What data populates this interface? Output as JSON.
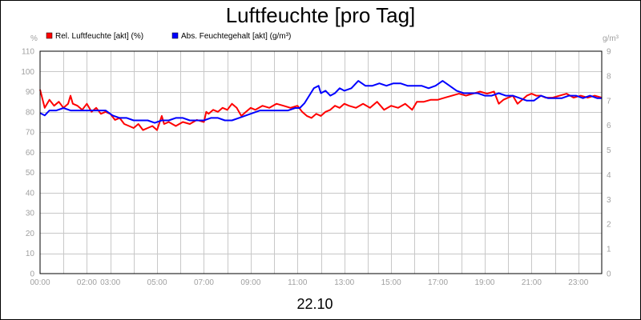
{
  "chart_data": {
    "type": "line",
    "title": "Luftfeuchte [pro Tag]",
    "date_label": "22.10",
    "x_unit": "hours",
    "xlim": [
      0,
      24
    ],
    "x_ticks": [
      {
        "x": 0,
        "label": "00:00"
      },
      {
        "x": 2,
        "label": "02:00"
      },
      {
        "x": 3,
        "label": "03:00"
      },
      {
        "x": 5,
        "label": "05:00"
      },
      {
        "x": 7,
        "label": "07:00"
      },
      {
        "x": 9,
        "label": "09:00"
      },
      {
        "x": 11,
        "label": "11:00"
      },
      {
        "x": 13,
        "label": "13:00"
      },
      {
        "x": 15,
        "label": "15:00"
      },
      {
        "x": 17,
        "label": "17:00"
      },
      {
        "x": 19,
        "label": "19:00"
      },
      {
        "x": 21,
        "label": "21:00"
      },
      {
        "x": 23,
        "label": "23:00"
      }
    ],
    "y_left": {
      "unit": "%",
      "lim": [
        0,
        110
      ],
      "ticks": [
        "0",
        "10",
        "20",
        "30",
        "40",
        "50",
        "60",
        "70",
        "80",
        "90",
        "100",
        "110"
      ]
    },
    "y_right": {
      "unit": "g/m³",
      "lim": [
        0,
        9
      ],
      "ticks": [
        "0",
        "1",
        "2",
        "3",
        "4",
        "5",
        "6",
        "7",
        "8",
        "9"
      ]
    },
    "grid": true,
    "legend_position": "top-left",
    "series": [
      {
        "name": "Rel. Luftfeuchte [akt] (%)",
        "axis": "left",
        "color": "#ff0000",
        "x": [
          0,
          0.2,
          0.4,
          0.6,
          0.8,
          1.0,
          1.2,
          1.3,
          1.4,
          1.6,
          1.8,
          2.0,
          2.2,
          2.4,
          2.6,
          2.8,
          3.0,
          3.2,
          3.4,
          3.6,
          3.8,
          4.0,
          4.2,
          4.4,
          4.6,
          4.8,
          5.0,
          5.2,
          5.3,
          5.5,
          5.8,
          6.1,
          6.4,
          6.7,
          7.0,
          7.1,
          7.2,
          7.4,
          7.6,
          7.8,
          8.0,
          8.2,
          8.4,
          8.6,
          8.8,
          9.0,
          9.2,
          9.5,
          9.8,
          10.1,
          10.4,
          10.7,
          11.0,
          11.2,
          11.4,
          11.6,
          11.8,
          12.0,
          12.2,
          12.4,
          12.6,
          12.8,
          13.0,
          13.2,
          13.5,
          13.8,
          14.1,
          14.4,
          14.7,
          15.0,
          15.3,
          15.6,
          15.9,
          16.1,
          16.4,
          16.7,
          17.0,
          17.3,
          17.6,
          17.9,
          18.2,
          18.5,
          18.8,
          19.1,
          19.4,
          19.6,
          19.8,
          20.0,
          20.2,
          20.4,
          20.6,
          20.8,
          21.0,
          21.2,
          21.4,
          21.6,
          21.9,
          22.2,
          22.5,
          22.8,
          23.1,
          23.4,
          23.7,
          24.0
        ],
        "values": [
          91,
          82,
          86,
          83,
          85,
          82,
          84,
          88,
          84,
          83,
          81,
          84,
          80,
          82,
          79,
          80,
          79,
          76,
          77,
          74,
          73,
          72,
          74,
          71,
          72,
          73,
          71,
          78,
          74,
          75,
          73,
          75,
          74,
          76,
          75,
          80,
          79,
          81,
          80,
          82,
          81,
          84,
          82,
          78,
          80,
          82,
          81,
          83,
          82,
          84,
          83,
          82,
          83,
          80,
          78,
          77,
          79,
          78,
          80,
          81,
          83,
          82,
          84,
          83,
          82,
          84,
          82,
          85,
          81,
          83,
          82,
          84,
          81,
          85,
          85,
          86,
          86,
          87,
          88,
          89,
          88,
          89,
          90,
          89,
          90,
          84,
          86,
          87,
          88,
          84,
          86,
          88,
          89,
          88,
          88,
          87,
          87,
          88,
          89,
          87,
          88,
          87,
          88,
          87
        ]
      },
      {
        "name": "Abs. Feuchtegehalt [akt] (g/m³)",
        "axis": "right",
        "color": "#0000ff",
        "x": [
          0,
          0.2,
          0.4,
          0.7,
          1.0,
          1.3,
          1.6,
          1.9,
          2.2,
          2.5,
          2.8,
          3.1,
          3.4,
          3.7,
          4.0,
          4.3,
          4.6,
          4.9,
          5.2,
          5.5,
          5.8,
          6.1,
          6.4,
          6.7,
          7.0,
          7.3,
          7.6,
          7.9,
          8.2,
          8.5,
          8.8,
          9.1,
          9.4,
          9.7,
          10.0,
          10.3,
          10.6,
          10.9,
          11.1,
          11.3,
          11.5,
          11.7,
          11.9,
          12.0,
          12.2,
          12.4,
          12.6,
          12.8,
          13.0,
          13.3,
          13.6,
          13.9,
          14.2,
          14.5,
          14.8,
          15.1,
          15.4,
          15.7,
          16.0,
          16.3,
          16.6,
          16.9,
          17.2,
          17.5,
          17.8,
          18.1,
          18.4,
          18.7,
          19.0,
          19.3,
          19.6,
          19.9,
          20.2,
          20.5,
          20.8,
          21.1,
          21.4,
          21.7,
          22.0,
          22.3,
          22.6,
          22.9,
          23.2,
          23.5,
          23.8,
          24.0
        ],
        "values": [
          6.5,
          6.4,
          6.6,
          6.6,
          6.7,
          6.6,
          6.6,
          6.6,
          6.6,
          6.6,
          6.6,
          6.4,
          6.3,
          6.3,
          6.2,
          6.2,
          6.2,
          6.1,
          6.2,
          6.2,
          6.3,
          6.3,
          6.2,
          6.2,
          6.2,
          6.3,
          6.3,
          6.2,
          6.2,
          6.3,
          6.4,
          6.5,
          6.6,
          6.6,
          6.6,
          6.6,
          6.6,
          6.7,
          6.7,
          6.9,
          7.2,
          7.5,
          7.6,
          7.3,
          7.4,
          7.2,
          7.3,
          7.5,
          7.4,
          7.5,
          7.8,
          7.6,
          7.6,
          7.7,
          7.6,
          7.7,
          7.7,
          7.6,
          7.6,
          7.6,
          7.5,
          7.6,
          7.8,
          7.6,
          7.4,
          7.3,
          7.3,
          7.3,
          7.2,
          7.2,
          7.3,
          7.2,
          7.2,
          7.1,
          7.0,
          7.0,
          7.2,
          7.1,
          7.1,
          7.1,
          7.2,
          7.2,
          7.1,
          7.2,
          7.1,
          7.1
        ]
      }
    ]
  }
}
